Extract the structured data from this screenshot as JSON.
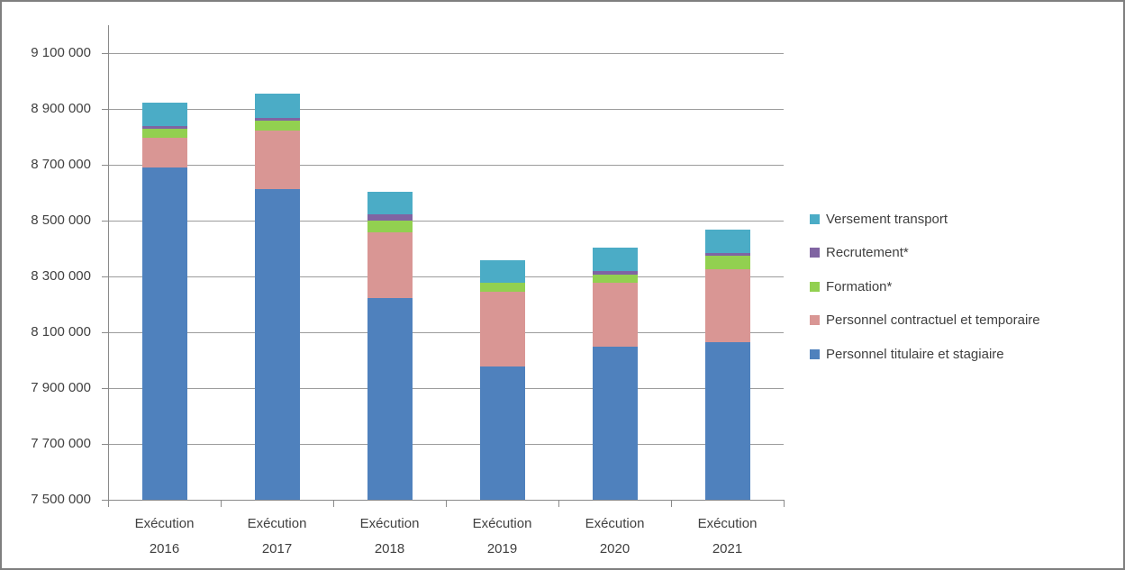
{
  "chart_data": {
    "type": "bar",
    "stacked": true,
    "title": "",
    "xlabel": "",
    "ylabel": "",
    "grid": true,
    "categories": [
      [
        "Exécution",
        "2016"
      ],
      [
        "Exécution",
        "2017"
      ],
      [
        "Exécution",
        "2018"
      ],
      [
        "Exécution",
        "2019"
      ],
      [
        "Exécution",
        "2020"
      ],
      [
        "Exécution",
        "2021"
      ]
    ],
    "series": [
      {
        "name": "Personnel titulaire et stagiaire",
        "color": "#4F81BD",
        "values": [
          8690000,
          8612000,
          8224000,
          7979000,
          8047000,
          8065000
        ]
      },
      {
        "name": "Personnel contractuel et temporaire",
        "color": "#D99694",
        "values": [
          106000,
          210000,
          234000,
          267000,
          231000,
          261000
        ]
      },
      {
        "name": "Formation*",
        "color": "#92D050",
        "values": [
          33000,
          35000,
          41000,
          32000,
          28000,
          47000
        ]
      },
      {
        "name": "Recrutement*",
        "color": "#8064A2",
        "values": [
          10000,
          10000,
          23000,
          0,
          13000,
          10000
        ]
      },
      {
        "name": "Versement transport",
        "color": "#4BACC6",
        "values": [
          85000,
          87000,
          81000,
          81000,
          84000,
          84000
        ]
      }
    ],
    "y_axis": {
      "min": 7500000,
      "max": 9200000,
      "tick_step": 200000,
      "tick_labels": [
        "7 500 000",
        "7 700 000",
        "7 900 000",
        "8 100 000",
        "8 300 000",
        "8 500 000",
        "8 700 000",
        "8 900 000",
        "9 100 000"
      ]
    },
    "legend": {
      "position": "right",
      "entries": [
        "Versement transport",
        "Recrutement*",
        "Formation*",
        "Personnel contractuel et temporaire",
        "Personnel titulaire et stagiaire"
      ]
    }
  },
  "colors": {
    "background": "#ffffff",
    "frame_border": "#7f7f7f",
    "gridline": "#9c9c9c",
    "axis": "#8a8a8a",
    "text": "#404040"
  }
}
